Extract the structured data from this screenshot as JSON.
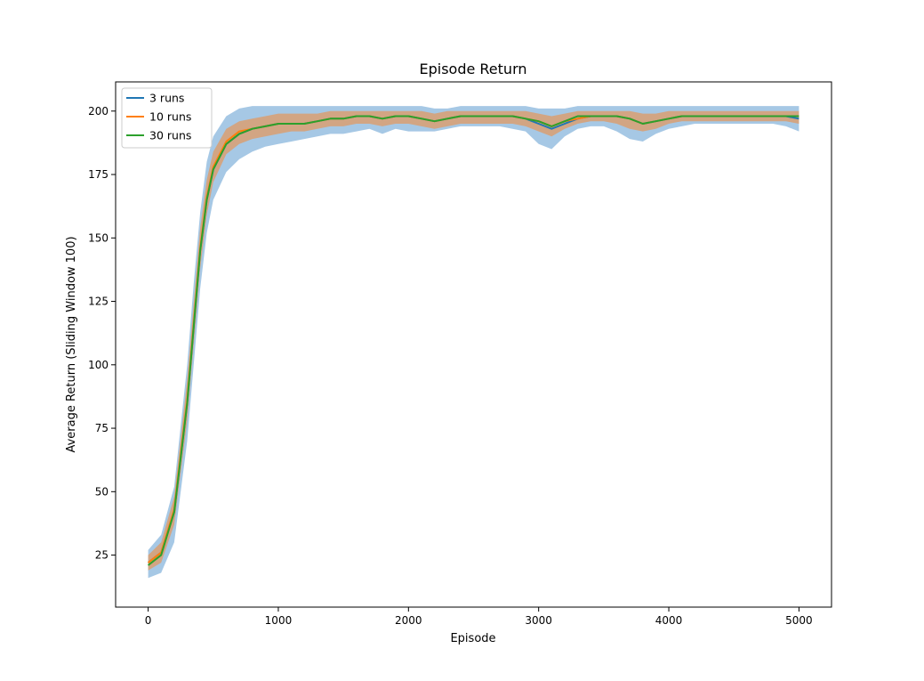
{
  "chart_data": {
    "type": "line",
    "title": "Episode Return",
    "xlabel": "Episode",
    "ylabel": "Average Return (Sliding Window 100)",
    "xlim": [
      -250,
      5250
    ],
    "ylim": [
      4.5,
      211.5
    ],
    "xticks": [
      0,
      1000,
      2000,
      3000,
      4000,
      5000
    ],
    "yticks": [
      25,
      50,
      75,
      100,
      125,
      150,
      175,
      200
    ],
    "grid": false,
    "legend": "upper-left",
    "colors": {
      "3 runs": "#1f77b4",
      "10 runs": "#ff7f0e",
      "30 runs": "#2ca02c",
      "band_3_runs": "#a6c8e5",
      "band_10_runs": "#d2a583"
    },
    "x": [
      0,
      100,
      200,
      300,
      350,
      400,
      450,
      500,
      600,
      700,
      800,
      900,
      1000,
      1100,
      1200,
      1300,
      1400,
      1500,
      1600,
      1700,
      1800,
      1900,
      2000,
      2100,
      2200,
      2300,
      2400,
      2500,
      2600,
      2700,
      2800,
      2900,
      3000,
      3100,
      3200,
      3300,
      3400,
      3500,
      3600,
      3700,
      3800,
      3900,
      4000,
      4100,
      4200,
      4300,
      4400,
      4500,
      4600,
      4700,
      4800,
      4900,
      5000
    ],
    "series": [
      {
        "name": "3 runs",
        "values": [
          22,
          26,
          42,
          85,
          115,
          145,
          165,
          177,
          187,
          191,
          193,
          194,
          195,
          195,
          195,
          196,
          197,
          197,
          198,
          198,
          197,
          198,
          198,
          197,
          196,
          197,
          198,
          198,
          198,
          198,
          198,
          197,
          195,
          193,
          195,
          197,
          198,
          198,
          198,
          197,
          195,
          196,
          197,
          198,
          198,
          198,
          198,
          198,
          198,
          198,
          198,
          198,
          197
        ],
        "band_lower": [
          16,
          18,
          30,
          70,
          100,
          130,
          152,
          165,
          176,
          181,
          184,
          186,
          187,
          188,
          189,
          190,
          191,
          191,
          192,
          193,
          191,
          193,
          192,
          192,
          192,
          193,
          194,
          194,
          194,
          194,
          193,
          192,
          187,
          185,
          190,
          193,
          194,
          194,
          192,
          189,
          188,
          191,
          193,
          194,
          195,
          195,
          195,
          195,
          195,
          195,
          195,
          194,
          192
        ],
        "band_upper": [
          27,
          33,
          52,
          100,
          132,
          160,
          180,
          190,
          198,
          201,
          202,
          202,
          202,
          202,
          202,
          202,
          202,
          202,
          202,
          202,
          202,
          202,
          202,
          202,
          201,
          201,
          202,
          202,
          202,
          202,
          202,
          202,
          201,
          201,
          201,
          202,
          202,
          202,
          202,
          202,
          202,
          202,
          202,
          202,
          202,
          202,
          202,
          202,
          202,
          202,
          202,
          202,
          202
        ]
      },
      {
        "name": "10 runs",
        "values": [
          22,
          26,
          43,
          86,
          116,
          146,
          166,
          178,
          188,
          192,
          193,
          194,
          195,
          195,
          195,
          196,
          197,
          197,
          198,
          198,
          197,
          198,
          198,
          197,
          196,
          197,
          198,
          198,
          198,
          198,
          198,
          197,
          196,
          194,
          196,
          197,
          198,
          198,
          198,
          197,
          195,
          196,
          197,
          198,
          198,
          198,
          198,
          198,
          198,
          198,
          198,
          198,
          198
        ],
        "band_lower": [
          19,
          22,
          37,
          78,
          108,
          138,
          159,
          172,
          183,
          187,
          189,
          190,
          191,
          192,
          192,
          193,
          194,
          194,
          195,
          195,
          194,
          195,
          195,
          194,
          193,
          194,
          195,
          195,
          195,
          195,
          195,
          194,
          192,
          190,
          193,
          195,
          196,
          196,
          195,
          193,
          192,
          193,
          195,
          196,
          196,
          196,
          196,
          196,
          196,
          196,
          196,
          196,
          195
        ],
        "band_upper": [
          25,
          30,
          48,
          94,
          124,
          154,
          173,
          184,
          193,
          196,
          197,
          198,
          199,
          199,
          199,
          199,
          200,
          200,
          200,
          200,
          200,
          200,
          200,
          200,
          199,
          200,
          200,
          200,
          200,
          200,
          200,
          200,
          199,
          198,
          199,
          200,
          200,
          200,
          200,
          200,
          199,
          199,
          200,
          200,
          200,
          200,
          200,
          200,
          200,
          200,
          200,
          200,
          200
        ]
      },
      {
        "name": "30 runs",
        "values": [
          21,
          25,
          42,
          85,
          115,
          145,
          165,
          177,
          187,
          191,
          193,
          194,
          195,
          195,
          195,
          196,
          197,
          197,
          198,
          198,
          197,
          198,
          198,
          197,
          196,
          197,
          198,
          198,
          198,
          198,
          198,
          197,
          196,
          194,
          196,
          198,
          198,
          198,
          198,
          197,
          195,
          196,
          197,
          198,
          198,
          198,
          198,
          198,
          198,
          198,
          198,
          198,
          198
        ]
      }
    ]
  }
}
